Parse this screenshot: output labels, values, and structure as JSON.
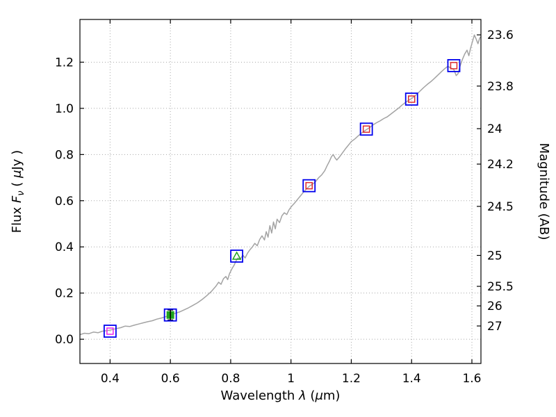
{
  "figure": {
    "background": "#ffffff"
  },
  "chart_data": {
    "type": "line",
    "title": "",
    "xlabel_parts": [
      {
        "t": "Wavelength  "
      },
      {
        "t": "λ",
        "style": "italic"
      },
      {
        "t": " ("
      },
      {
        "t": "μ",
        "style": "italic"
      },
      {
        "t": "m)"
      }
    ],
    "ylabel_left_parts": [
      {
        "t": "Flux  "
      },
      {
        "t": "F",
        "style": "italic"
      },
      {
        "t": "ν",
        "style": "italic-sub"
      },
      {
        "t": "  ( "
      },
      {
        "t": "μ",
        "style": "italic"
      },
      {
        "t": "Jy )"
      }
    ],
    "ylabel_right_parts": [
      {
        "t": "Magnitude (AB)"
      }
    ],
    "xlim": [
      0.3,
      1.63
    ],
    "ylim": [
      -0.105,
      1.385
    ],
    "grid": {
      "style": "dotted",
      "color": "#a8a8a8"
    },
    "x_ticks": [
      {
        "value": 0.4,
        "label": "0.4"
      },
      {
        "value": 0.6,
        "label": "0.6"
      },
      {
        "value": 0.8,
        "label": "0.8"
      },
      {
        "value": 1.0,
        "label": "1"
      },
      {
        "value": 1.2,
        "label": "1.2"
      },
      {
        "value": 1.4,
        "label": "1.4"
      },
      {
        "value": 1.6,
        "label": "1.6"
      }
    ],
    "y_ticks_left": [
      {
        "value": 0.0,
        "label": "0.0"
      },
      {
        "value": 0.2,
        "label": "0.2"
      },
      {
        "value": 0.4,
        "label": "0.4"
      },
      {
        "value": 0.6,
        "label": "0.6"
      },
      {
        "value": 0.8,
        "label": "0.8"
      },
      {
        "value": 1.0,
        "label": "1.0"
      },
      {
        "value": 1.2,
        "label": "1.2"
      }
    ],
    "y_ticks_right": [
      {
        "label": "23.6",
        "flux": 1.3183
      },
      {
        "label": "23.8",
        "flux": 1.0965
      },
      {
        "label": "24",
        "flux": 0.912
      },
      {
        "label": "24.2",
        "flux": 0.7586
      },
      {
        "label": "24.5",
        "flux": 0.5754
      },
      {
        "label": "25",
        "flux": 0.3631
      },
      {
        "label": "25.5",
        "flux": 0.2291
      },
      {
        "label": "26",
        "flux": 0.1445
      },
      {
        "label": "27",
        "flux": 0.0575
      }
    ],
    "colors": {
      "blue": "#0000ee",
      "red": "#dd2b2b",
      "magenta": "#ee22ee",
      "green": "#1fa31f",
      "spectrum": "#a3a3a3",
      "axis": "#000000",
      "grid": "#a8a8a8",
      "errorbar": "#000000"
    },
    "spectrum": {
      "name": "model-spectrum",
      "color": "#a3a3a3",
      "points": [
        [
          0.3,
          0.02
        ],
        [
          0.315,
          0.026
        ],
        [
          0.33,
          0.024
        ],
        [
          0.345,
          0.031
        ],
        [
          0.36,
          0.028
        ],
        [
          0.375,
          0.035
        ],
        [
          0.39,
          0.037
        ],
        [
          0.405,
          0.041
        ],
        [
          0.42,
          0.046
        ],
        [
          0.435,
          0.05
        ],
        [
          0.45,
          0.057
        ],
        [
          0.465,
          0.055
        ],
        [
          0.48,
          0.061
        ],
        [
          0.495,
          0.066
        ],
        [
          0.51,
          0.071
        ],
        [
          0.525,
          0.076
        ],
        [
          0.54,
          0.08
        ],
        [
          0.555,
          0.087
        ],
        [
          0.57,
          0.092
        ],
        [
          0.585,
          0.098
        ],
        [
          0.6,
          0.104
        ],
        [
          0.615,
          0.112
        ],
        [
          0.63,
          0.118
        ],
        [
          0.645,
          0.127
        ],
        [
          0.66,
          0.136
        ],
        [
          0.675,
          0.147
        ],
        [
          0.69,
          0.158
        ],
        [
          0.705,
          0.172
        ],
        [
          0.72,
          0.188
        ],
        [
          0.735,
          0.206
        ],
        [
          0.75,
          0.228
        ],
        [
          0.76,
          0.247
        ],
        [
          0.768,
          0.238
        ],
        [
          0.776,
          0.262
        ],
        [
          0.784,
          0.272
        ],
        [
          0.79,
          0.258
        ],
        [
          0.796,
          0.284
        ],
        [
          0.804,
          0.305
        ],
        [
          0.812,
          0.322
        ],
        [
          0.818,
          0.34
        ],
        [
          0.824,
          0.352
        ],
        [
          0.832,
          0.346
        ],
        [
          0.84,
          0.365
        ],
        [
          0.848,
          0.352
        ],
        [
          0.856,
          0.373
        ],
        [
          0.864,
          0.388
        ],
        [
          0.872,
          0.4
        ],
        [
          0.88,
          0.415
        ],
        [
          0.888,
          0.405
        ],
        [
          0.896,
          0.432
        ],
        [
          0.904,
          0.448
        ],
        [
          0.912,
          0.43
        ],
        [
          0.918,
          0.466
        ],
        [
          0.924,
          0.442
        ],
        [
          0.93,
          0.492
        ],
        [
          0.936,
          0.46
        ],
        [
          0.942,
          0.508
        ],
        [
          0.948,
          0.478
        ],
        [
          0.954,
          0.52
        ],
        [
          0.962,
          0.505
        ],
        [
          0.97,
          0.535
        ],
        [
          0.978,
          0.548
        ],
        [
          0.986,
          0.54
        ],
        [
          0.994,
          0.562
        ],
        [
          1.002,
          0.576
        ],
        [
          1.012,
          0.59
        ],
        [
          1.022,
          0.606
        ],
        [
          1.032,
          0.622
        ],
        [
          1.042,
          0.638
        ],
        [
          1.052,
          0.652
        ],
        [
          1.062,
          0.664
        ],
        [
          1.072,
          0.672
        ],
        [
          1.082,
          0.684
        ],
        [
          1.092,
          0.7
        ],
        [
          1.102,
          0.712
        ],
        [
          1.112,
          0.73
        ],
        [
          1.12,
          0.752
        ],
        [
          1.128,
          0.772
        ],
        [
          1.134,
          0.79
        ],
        [
          1.14,
          0.8
        ],
        [
          1.146,
          0.786
        ],
        [
          1.152,
          0.776
        ],
        [
          1.16,
          0.788
        ],
        [
          1.17,
          0.806
        ],
        [
          1.18,
          0.824
        ],
        [
          1.19,
          0.84
        ],
        [
          1.2,
          0.856
        ],
        [
          1.212,
          0.868
        ],
        [
          1.224,
          0.882
        ],
        [
          1.236,
          0.895
        ],
        [
          1.248,
          0.906
        ],
        [
          1.26,
          0.916
        ],
        [
          1.272,
          0.928
        ],
        [
          1.284,
          0.938
        ],
        [
          1.296,
          0.946
        ],
        [
          1.308,
          0.956
        ],
        [
          1.32,
          0.964
        ],
        [
          1.332,
          0.976
        ],
        [
          1.344,
          0.988
        ],
        [
          1.356,
          1.0
        ],
        [
          1.368,
          1.014
        ],
        [
          1.38,
          1.026
        ],
        [
          1.392,
          1.036
        ],
        [
          1.404,
          1.046
        ],
        [
          1.416,
          1.06
        ],
        [
          1.428,
          1.075
        ],
        [
          1.44,
          1.09
        ],
        [
          1.452,
          1.104
        ],
        [
          1.464,
          1.116
        ],
        [
          1.476,
          1.13
        ],
        [
          1.488,
          1.145
        ],
        [
          1.5,
          1.16
        ],
        [
          1.51,
          1.172
        ],
        [
          1.52,
          1.182
        ],
        [
          1.53,
          1.175
        ],
        [
          1.54,
          1.168
        ],
        [
          1.548,
          1.142
        ],
        [
          1.554,
          1.15
        ],
        [
          1.56,
          1.18
        ],
        [
          1.568,
          1.21
        ],
        [
          1.576,
          1.235
        ],
        [
          1.584,
          1.252
        ],
        [
          1.59,
          1.228
        ],
        [
          1.596,
          1.262
        ],
        [
          1.602,
          1.29
        ],
        [
          1.608,
          1.318
        ],
        [
          1.614,
          1.3
        ],
        [
          1.62,
          1.28
        ],
        [
          1.626,
          1.305
        ],
        [
          1.63,
          1.31
        ]
      ]
    },
    "photometry": [
      {
        "x": 0.4,
        "flux": 0.035,
        "outer": "blue-open-square",
        "inner": "magenta-open-square"
      },
      {
        "x": 0.6,
        "flux": 0.105,
        "outer": "blue-open-square",
        "inner": "green-filled-square",
        "err": 0.022
      },
      {
        "x": 0.82,
        "flux": 0.36,
        "outer": "blue-open-square",
        "inner": "green-open-triangle"
      },
      {
        "x": 1.06,
        "flux": 0.665,
        "outer": "blue-open-square",
        "inner": "red-open-square"
      },
      {
        "x": 1.25,
        "flux": 0.91,
        "outer": "blue-open-square",
        "inner": "red-open-square"
      },
      {
        "x": 1.4,
        "flux": 1.04,
        "outer": "blue-open-square",
        "inner": "red-open-square"
      },
      {
        "x": 1.54,
        "flux": 1.185,
        "outer": "blue-open-square",
        "inner": "red-open-square"
      }
    ]
  }
}
